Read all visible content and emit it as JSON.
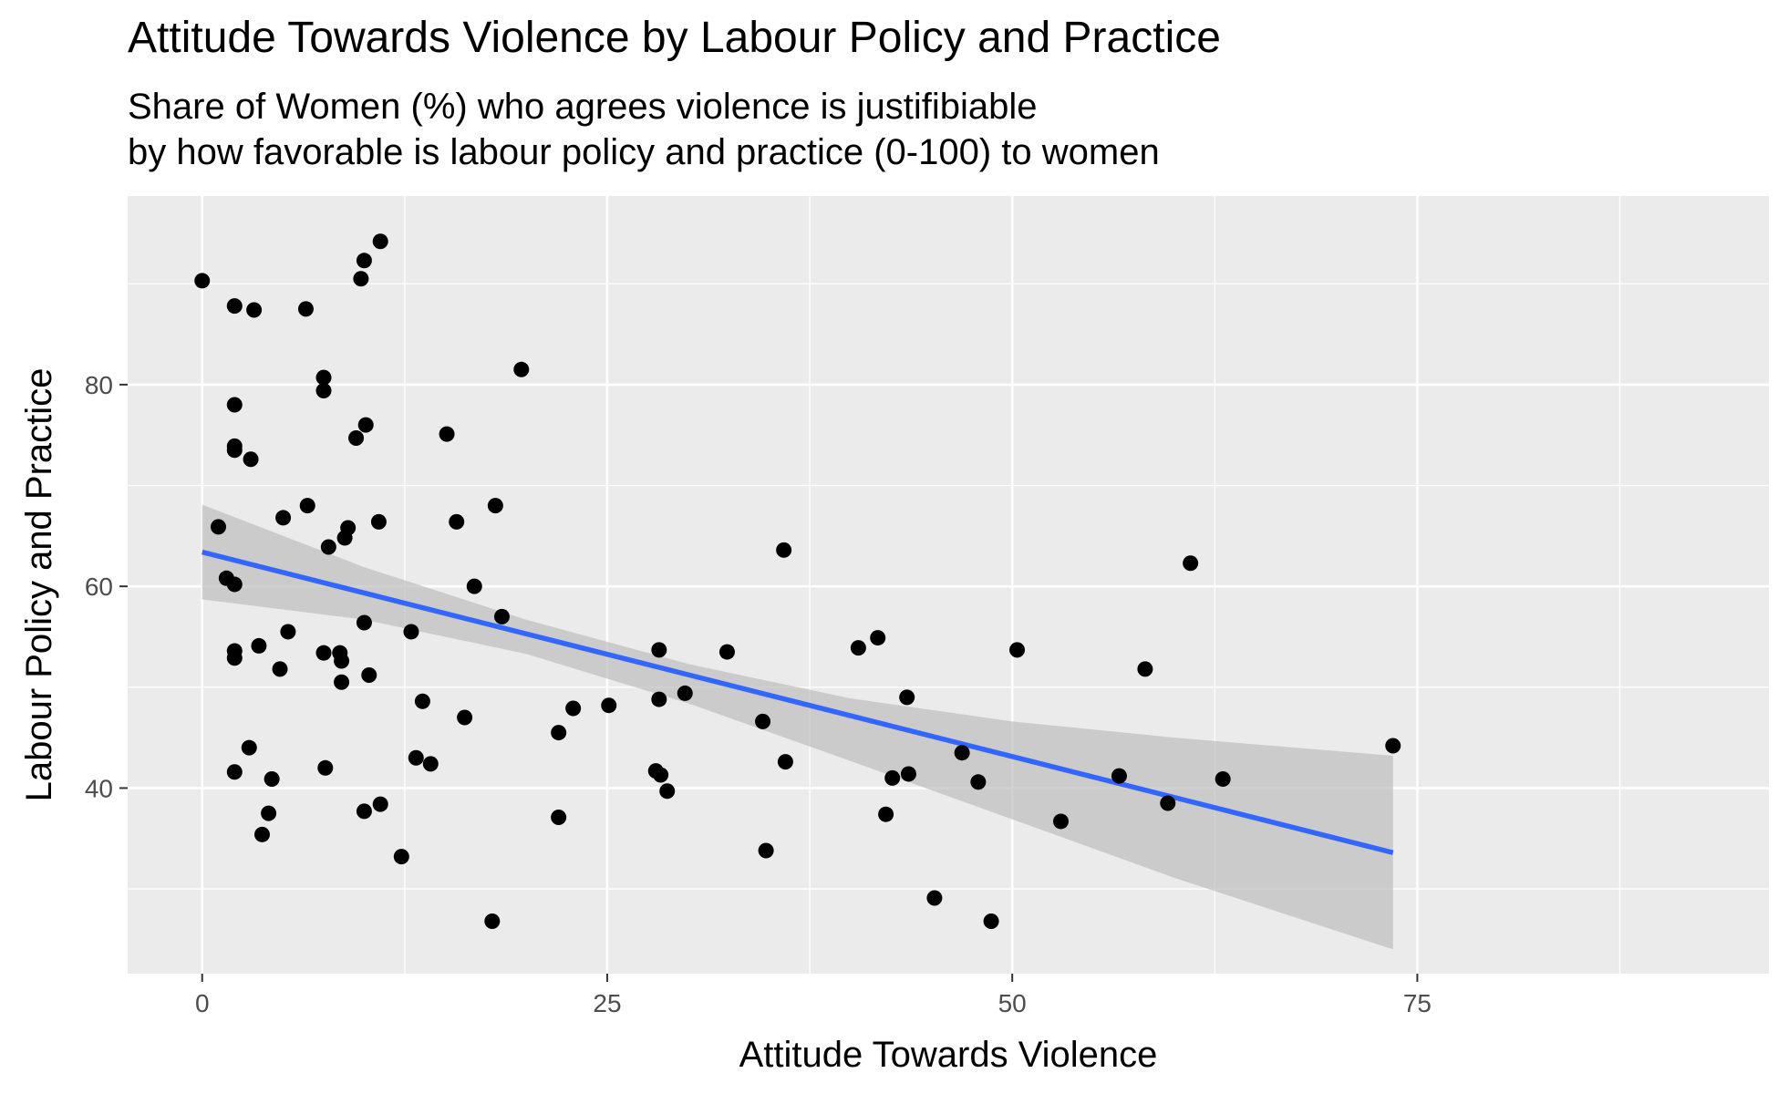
{
  "chart_data": {
    "type": "scatter",
    "title": "Attitude Towards Violence by Labour Policy and Practice",
    "subtitle": [
      "Share of Women (%) who agrees violence is justifibiable",
      "by how favorable is labour policy and practice (0-100) to women"
    ],
    "xlabel": "Attitude Towards Violence",
    "ylabel": "Labour Policy and Practice",
    "xlim": [
      -4.6,
      96.7
    ],
    "ylim": [
      21.6,
      98.7
    ],
    "x_ticks": [
      0,
      25,
      50,
      75
    ],
    "y_ticks": [
      40,
      60,
      80
    ],
    "grid": true,
    "legend": "none",
    "colors": {
      "panel": "#EBEBEB",
      "grid": "#FFFFFF",
      "points": "#000000",
      "fit_line": "#3366FF",
      "confidence_band": "#BDBDBD",
      "tick_text": "#4D4D4D"
    },
    "points": [
      {
        "x": 0.0,
        "y": 90.3
      },
      {
        "x": 1.0,
        "y": 65.9
      },
      {
        "x": 1.5,
        "y": 60.8
      },
      {
        "x": 2.0,
        "y": 87.8
      },
      {
        "x": 2.0,
        "y": 78.0
      },
      {
        "x": 2.0,
        "y": 73.9
      },
      {
        "x": 2.0,
        "y": 73.5
      },
      {
        "x": 2.0,
        "y": 60.2
      },
      {
        "x": 2.0,
        "y": 53.6
      },
      {
        "x": 2.0,
        "y": 52.9
      },
      {
        "x": 2.0,
        "y": 41.6
      },
      {
        "x": 3.2,
        "y": 87.4
      },
      {
        "x": 3.0,
        "y": 72.6
      },
      {
        "x": 2.9,
        "y": 44.0
      },
      {
        "x": 3.5,
        "y": 54.1
      },
      {
        "x": 3.7,
        "y": 35.4
      },
      {
        "x": 4.1,
        "y": 37.5
      },
      {
        "x": 4.3,
        "y": 40.9
      },
      {
        "x": 4.8,
        "y": 51.8
      },
      {
        "x": 5.0,
        "y": 66.8
      },
      {
        "x": 5.3,
        "y": 55.5
      },
      {
        "x": 6.4,
        "y": 87.5
      },
      {
        "x": 6.5,
        "y": 68.0
      },
      {
        "x": 7.5,
        "y": 80.7
      },
      {
        "x": 7.5,
        "y": 79.4
      },
      {
        "x": 7.5,
        "y": 53.4
      },
      {
        "x": 7.6,
        "y": 42.0
      },
      {
        "x": 7.8,
        "y": 63.9
      },
      {
        "x": 8.5,
        "y": 53.4
      },
      {
        "x": 8.6,
        "y": 52.6
      },
      {
        "x": 8.6,
        "y": 50.5
      },
      {
        "x": 8.8,
        "y": 64.8
      },
      {
        "x": 9.0,
        "y": 65.8
      },
      {
        "x": 9.5,
        "y": 74.7
      },
      {
        "x": 9.8,
        "y": 90.5
      },
      {
        "x": 10.0,
        "y": 92.3
      },
      {
        "x": 10.1,
        "y": 76.0
      },
      {
        "x": 10.0,
        "y": 56.4
      },
      {
        "x": 10.0,
        "y": 37.7
      },
      {
        "x": 10.3,
        "y": 51.2
      },
      {
        "x": 11.0,
        "y": 94.2
      },
      {
        "x": 10.9,
        "y": 66.4
      },
      {
        "x": 11.0,
        "y": 38.4
      },
      {
        "x": 12.3,
        "y": 33.2
      },
      {
        "x": 12.9,
        "y": 55.5
      },
      {
        "x": 13.2,
        "y": 43.0
      },
      {
        "x": 13.6,
        "y": 48.6
      },
      {
        "x": 14.1,
        "y": 42.4
      },
      {
        "x": 15.1,
        "y": 75.1
      },
      {
        "x": 15.7,
        "y": 66.4
      },
      {
        "x": 16.2,
        "y": 47.0
      },
      {
        "x": 16.8,
        "y": 60.0
      },
      {
        "x": 17.9,
        "y": 26.8
      },
      {
        "x": 18.1,
        "y": 68.0
      },
      {
        "x": 18.5,
        "y": 57.0
      },
      {
        "x": 19.7,
        "y": 81.5
      },
      {
        "x": 22.0,
        "y": 37.1
      },
      {
        "x": 22.0,
        "y": 45.5
      },
      {
        "x": 22.9,
        "y": 47.9
      },
      {
        "x": 25.1,
        "y": 48.2
      },
      {
        "x": 28.0,
        "y": 41.7
      },
      {
        "x": 28.2,
        "y": 53.7
      },
      {
        "x": 28.2,
        "y": 48.8
      },
      {
        "x": 28.3,
        "y": 41.3
      },
      {
        "x": 28.7,
        "y": 39.7
      },
      {
        "x": 29.8,
        "y": 49.4
      },
      {
        "x": 32.4,
        "y": 53.5
      },
      {
        "x": 34.6,
        "y": 46.6
      },
      {
        "x": 34.8,
        "y": 33.8
      },
      {
        "x": 35.9,
        "y": 63.6
      },
      {
        "x": 36.0,
        "y": 42.6
      },
      {
        "x": 40.5,
        "y": 53.9
      },
      {
        "x": 41.7,
        "y": 54.9
      },
      {
        "x": 42.2,
        "y": 37.4
      },
      {
        "x": 42.6,
        "y": 41.0
      },
      {
        "x": 43.5,
        "y": 49.0
      },
      {
        "x": 43.6,
        "y": 41.4
      },
      {
        "x": 45.2,
        "y": 29.1
      },
      {
        "x": 46.9,
        "y": 43.5
      },
      {
        "x": 47.9,
        "y": 40.6
      },
      {
        "x": 48.7,
        "y": 26.8
      },
      {
        "x": 50.3,
        "y": 53.7
      },
      {
        "x": 53.0,
        "y": 36.7
      },
      {
        "x": 56.6,
        "y": 41.2
      },
      {
        "x": 58.2,
        "y": 51.8
      },
      {
        "x": 59.6,
        "y": 38.5
      },
      {
        "x": 61.0,
        "y": 62.3
      },
      {
        "x": 63.0,
        "y": 40.9
      },
      {
        "x": 73.5,
        "y": 44.2
      }
    ],
    "fit_line": {
      "x": [
        0.0,
        73.5
      ],
      "y": [
        63.4,
        33.6
      ]
    },
    "confidence_band": {
      "x": [
        0.0,
        10.0,
        20.0,
        30.0,
        40.0,
        50.0,
        60.0,
        73.5
      ],
      "upper": [
        68.1,
        61.9,
        56.7,
        52.3,
        48.9,
        46.6,
        45.0,
        43.2
      ],
      "lower": [
        58.7,
        56.7,
        53.3,
        48.4,
        42.7,
        36.9,
        31.1,
        24.0
      ]
    }
  }
}
